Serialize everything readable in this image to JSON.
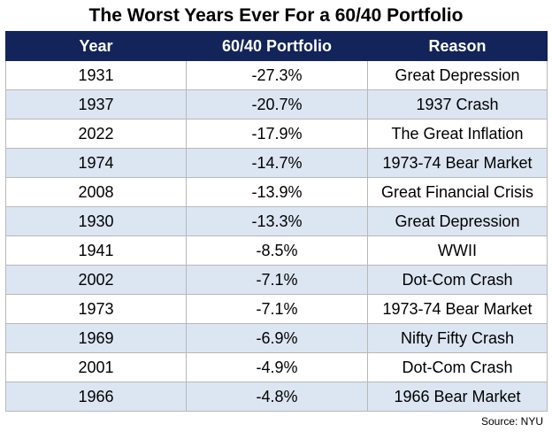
{
  "title": "The Worst Years Ever For a 60/40 Portfolio",
  "table": {
    "columns": [
      "Year",
      "60/40 Portfolio",
      "Reason"
    ],
    "rows": [
      {
        "year": "1931",
        "portfolio": "-27.3%",
        "reason": "Great Depression"
      },
      {
        "year": "1937",
        "portfolio": "-20.7%",
        "reason": "1937 Crash"
      },
      {
        "year": "2022",
        "portfolio": "-17.9%",
        "reason": "The Great Inflation"
      },
      {
        "year": "1974",
        "portfolio": "-14.7%",
        "reason": "1973-74 Bear Market"
      },
      {
        "year": "2008",
        "portfolio": "-13.9%",
        "reason": "Great Financial Crisis"
      },
      {
        "year": "1930",
        "portfolio": "-13.3%",
        "reason": "Great Depression"
      },
      {
        "year": "1941",
        "portfolio": "-8.5%",
        "reason": "WWII"
      },
      {
        "year": "2002",
        "portfolio": "-7.1%",
        "reason": "Dot-Com Crash"
      },
      {
        "year": "1973",
        "portfolio": "-7.1%",
        "reason": "1973-74 Bear Market"
      },
      {
        "year": "1969",
        "portfolio": "-6.9%",
        "reason": "Nifty Fifty Crash"
      },
      {
        "year": "2001",
        "portfolio": "-4.9%",
        "reason": "Dot-Com Crash"
      },
      {
        "year": "1966",
        "portfolio": "-4.8%",
        "reason": "1966 Bear Market"
      }
    ]
  },
  "source": "Source: NYU",
  "colors": {
    "header_bg": "#13245a",
    "header_text": "#ffffff",
    "stripe": "#dce6f2",
    "border": "#b8b8b8"
  }
}
